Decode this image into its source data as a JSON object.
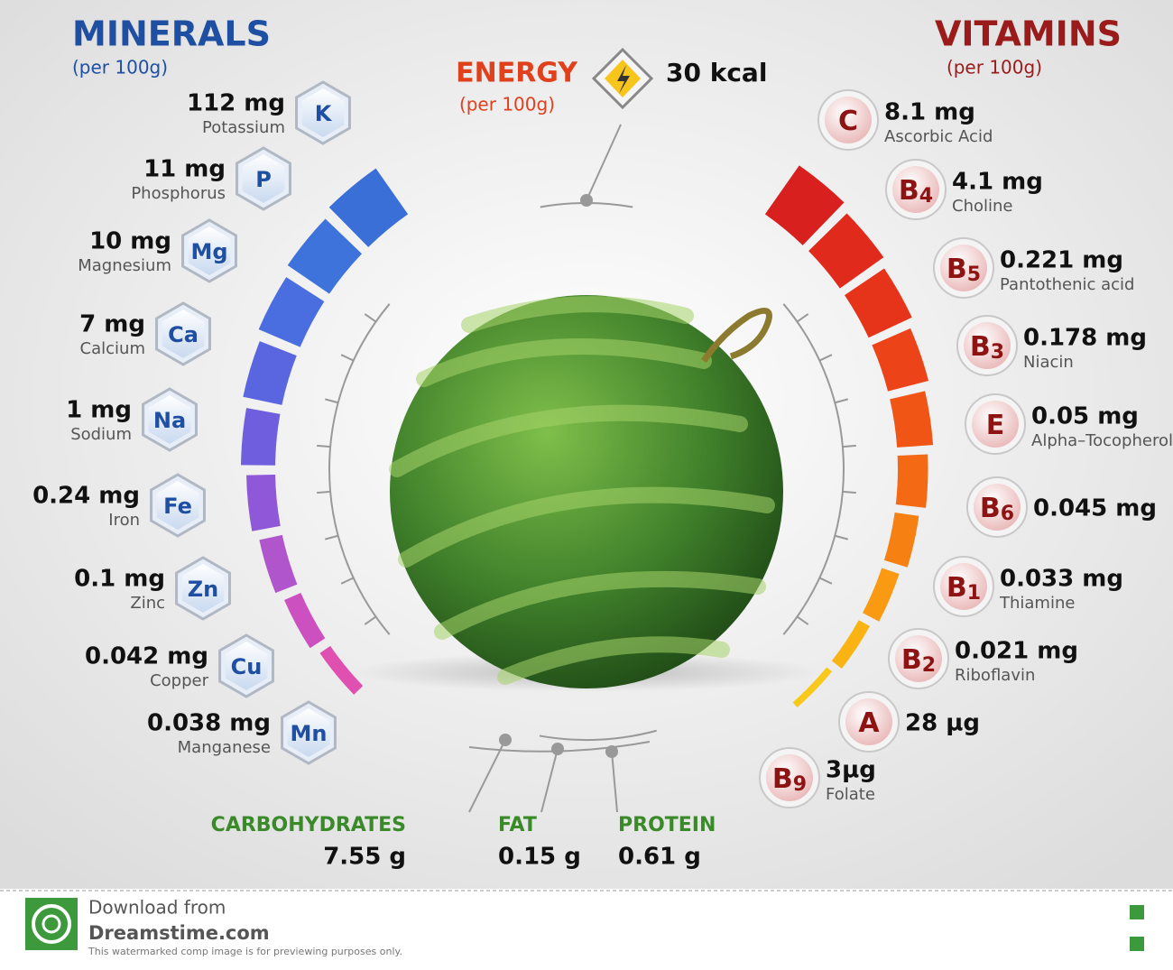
{
  "minerals": {
    "title": "MINERALS",
    "subtitle": "(per 100g)",
    "items": [
      {
        "symbol": "K",
        "amount": "112 mg",
        "name": "Potassium"
      },
      {
        "symbol": "P",
        "amount": "11 mg",
        "name": "Phosphorus"
      },
      {
        "symbol": "Mg",
        "amount": "10 mg",
        "name": "Magnesium"
      },
      {
        "symbol": "Ca",
        "amount": "7 mg",
        "name": "Calcium"
      },
      {
        "symbol": "Na",
        "amount": "1 mg",
        "name": "Sodium"
      },
      {
        "symbol": "Fe",
        "amount": "0.24 mg",
        "name": "Iron"
      },
      {
        "symbol": "Zn",
        "amount": "0.1 mg",
        "name": "Zinc"
      },
      {
        "symbol": "Cu",
        "amount": "0.042 mg",
        "name": "Copper"
      },
      {
        "symbol": "Mn",
        "amount": "0.038 mg",
        "name": "Manganese"
      }
    ]
  },
  "vitamins": {
    "title": "VITAMINS",
    "subtitle": "(per 100g)",
    "items": [
      {
        "letter": "C",
        "sub": "",
        "amount": "8.1 mg",
        "name": "Ascorbic Acid"
      },
      {
        "letter": "B",
        "sub": "4",
        "amount": "4.1 mg",
        "name": "Choline"
      },
      {
        "letter": "B",
        "sub": "5",
        "amount": "0.221 mg",
        "name": "Pantothenic acid"
      },
      {
        "letter": "B",
        "sub": "3",
        "amount": "0.178 mg",
        "name": "Niacin"
      },
      {
        "letter": "E",
        "sub": "",
        "amount": "0.05 mg",
        "name": "Alpha–Tocopherol"
      },
      {
        "letter": "B",
        "sub": "6",
        "amount": "0.045 mg",
        "name": ""
      },
      {
        "letter": "B",
        "sub": "1",
        "amount": "0.033 mg",
        "name": "Thiamine"
      },
      {
        "letter": "B",
        "sub": "2",
        "amount": "0.021 mg",
        "name": "Riboflavin"
      },
      {
        "letter": "A",
        "sub": "",
        "amount": "28 µg",
        "name": ""
      },
      {
        "letter": "B",
        "sub": "9",
        "amount": "3µg",
        "name": "Folate"
      }
    ]
  },
  "energy": {
    "title": "ENERGY",
    "subtitle": "(per 100g)",
    "value": "30 kcal"
  },
  "macros": [
    {
      "name": "CARBOHYDRATES",
      "value": "7.55 g"
    },
    {
      "name": "FAT",
      "value": "0.15 g"
    },
    {
      "name": "PROTEIN",
      "value": "0.61 g"
    }
  ],
  "footer": {
    "line1": "Download from",
    "line2": "Dreamstime.com",
    "note": "This watermarked comp image is for previewing purposes only."
  }
}
